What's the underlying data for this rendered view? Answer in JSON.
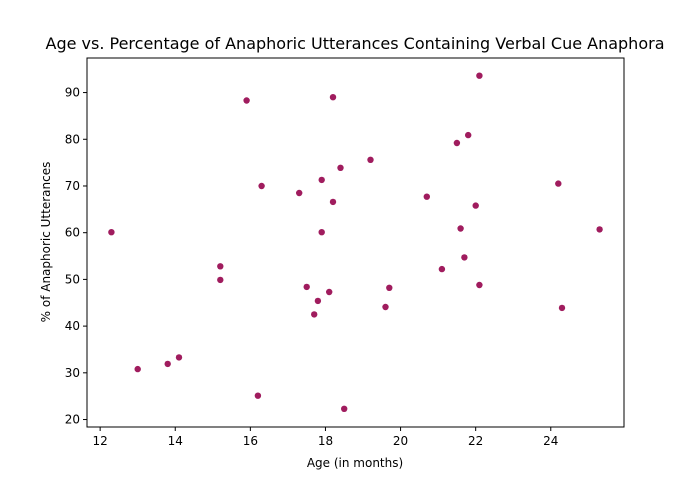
{
  "chart_data": {
    "type": "scatter",
    "title": "Age vs. Percentage of Anaphoric Utterances Containing Verbal Cue Anaphora",
    "xlabel": "Age (in months)",
    "ylabel": "% of Anaphoric Utterances",
    "xlim": [
      11.65,
      25.95
    ],
    "ylim": [
      18.4,
      97.4
    ],
    "xticks": [
      12,
      14,
      16,
      18,
      20,
      22,
      24
    ],
    "yticks": [
      20,
      30,
      40,
      50,
      60,
      70,
      80,
      90
    ],
    "xtick_labels": [
      "12",
      "14",
      "16",
      "18",
      "20",
      "22",
      "24"
    ],
    "ytick_labels": [
      "20",
      "30",
      "40",
      "50",
      "60",
      "70",
      "80",
      "90"
    ],
    "grid": false,
    "legend": "none",
    "marker_color": "#a01c5e",
    "points": [
      {
        "x": 12.3,
        "y": 60.1
      },
      {
        "x": 13.0,
        "y": 30.8
      },
      {
        "x": 13.8,
        "y": 31.9
      },
      {
        "x": 14.1,
        "y": 33.3
      },
      {
        "x": 15.2,
        "y": 52.8
      },
      {
        "x": 15.2,
        "y": 49.9
      },
      {
        "x": 15.9,
        "y": 88.3
      },
      {
        "x": 16.2,
        "y": 25.1
      },
      {
        "x": 16.3,
        "y": 70.0
      },
      {
        "x": 17.3,
        "y": 68.5
      },
      {
        "x": 17.5,
        "y": 48.4
      },
      {
        "x": 17.7,
        "y": 42.5
      },
      {
        "x": 17.8,
        "y": 45.4
      },
      {
        "x": 17.9,
        "y": 71.3
      },
      {
        "x": 17.9,
        "y": 60.1
      },
      {
        "x": 18.1,
        "y": 47.3
      },
      {
        "x": 18.2,
        "y": 89.0
      },
      {
        "x": 18.2,
        "y": 66.6
      },
      {
        "x": 18.4,
        "y": 73.9
      },
      {
        "x": 18.5,
        "y": 22.3
      },
      {
        "x": 19.2,
        "y": 75.6
      },
      {
        "x": 19.6,
        "y": 44.1
      },
      {
        "x": 19.7,
        "y": 48.2
      },
      {
        "x": 20.7,
        "y": 67.7
      },
      {
        "x": 21.1,
        "y": 52.2
      },
      {
        "x": 21.5,
        "y": 79.2
      },
      {
        "x": 21.6,
        "y": 60.9
      },
      {
        "x": 21.7,
        "y": 54.7
      },
      {
        "x": 21.8,
        "y": 80.9
      },
      {
        "x": 22.0,
        "y": 65.8
      },
      {
        "x": 22.1,
        "y": 93.6
      },
      {
        "x": 22.1,
        "y": 48.8
      },
      {
        "x": 24.2,
        "y": 70.5
      },
      {
        "x": 24.3,
        "y": 43.9
      },
      {
        "x": 25.3,
        "y": 60.7
      }
    ]
  }
}
